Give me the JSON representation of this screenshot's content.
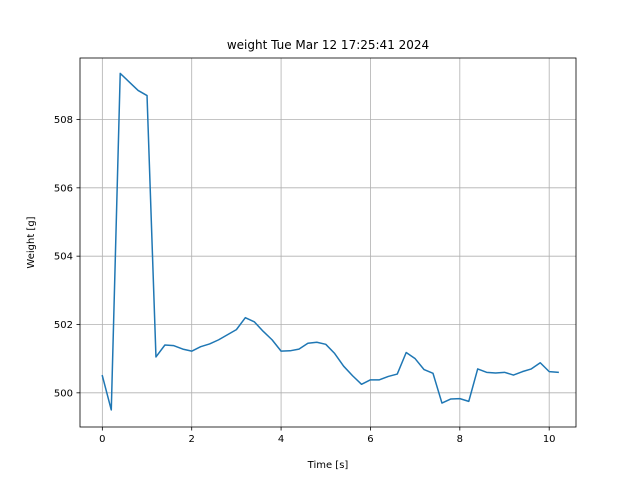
{
  "chart_data": {
    "type": "line",
    "title": "weight Tue Mar 12 17:25:41 2024",
    "xlabel": "Time [s]",
    "ylabel": "Weight [g]",
    "xlim": [
      -0.5,
      10.6
    ],
    "ylim": [
      499.0,
      509.8
    ],
    "xticks": [
      0,
      2,
      4,
      6,
      8,
      10
    ],
    "yticks": [
      500,
      502,
      504,
      506,
      508
    ],
    "grid": true,
    "line_color": "#1f77b4",
    "series": [
      {
        "x": [
          0.0,
          0.2,
          0.4,
          0.6,
          0.8,
          1.0,
          1.2,
          1.4,
          1.6,
          1.8,
          2.0,
          2.2,
          2.4,
          2.6,
          2.8,
          3.0,
          3.2,
          3.4,
          3.6,
          3.8,
          4.0,
          4.2,
          4.4,
          4.6,
          4.8,
          5.0,
          5.2,
          5.4,
          5.6,
          5.8,
          6.0,
          6.2,
          6.4,
          6.6,
          6.8,
          7.0,
          7.2,
          7.4,
          7.6,
          7.8,
          8.0,
          8.2,
          8.4,
          8.6,
          8.8,
          9.0,
          9.2,
          9.4,
          9.6,
          9.8,
          10.0,
          10.2
        ],
        "y": [
          500.5,
          499.5,
          509.35,
          509.1,
          508.85,
          508.7,
          501.05,
          501.4,
          501.38,
          501.28,
          501.22,
          501.35,
          501.43,
          501.55,
          501.7,
          501.85,
          502.2,
          502.08,
          501.8,
          501.55,
          501.22,
          501.23,
          501.28,
          501.45,
          501.48,
          501.42,
          501.15,
          500.78,
          500.5,
          500.25,
          500.38,
          500.38,
          500.48,
          500.55,
          501.18,
          501.0,
          500.68,
          500.57,
          499.7,
          499.82,
          499.83,
          499.75,
          500.7,
          500.6,
          500.58,
          500.6,
          500.52,
          500.62,
          500.7,
          500.88,
          500.62,
          500.6
        ]
      }
    ]
  }
}
